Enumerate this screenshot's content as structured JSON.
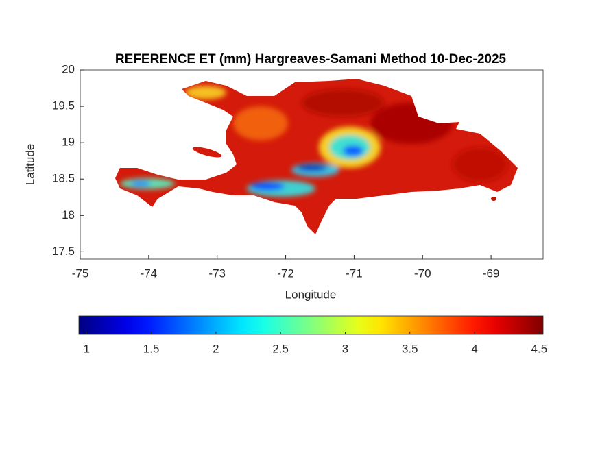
{
  "chart_data": {
    "type": "map",
    "title": "REFERENCE ET (mm) Hargreaves-Samani Method  10-Dec-2025",
    "x_label": "Longitude",
    "y_label": "Latitude",
    "xlim": [
      -75,
      -68.24
    ],
    "ylim": [
      17.4,
      20
    ],
    "xticks": [
      -75,
      -74,
      -73,
      -72,
      -71,
      -70,
      -69
    ],
    "yticks": [
      17.5,
      18,
      18.5,
      19,
      19.5,
      20
    ],
    "colorbar": {
      "colormap": "jet",
      "clim": [
        0.94,
        4.53
      ],
      "ticks": [
        1,
        1.5,
        2,
        2.5,
        3,
        3.5,
        4,
        4.5
      ]
    }
  }
}
